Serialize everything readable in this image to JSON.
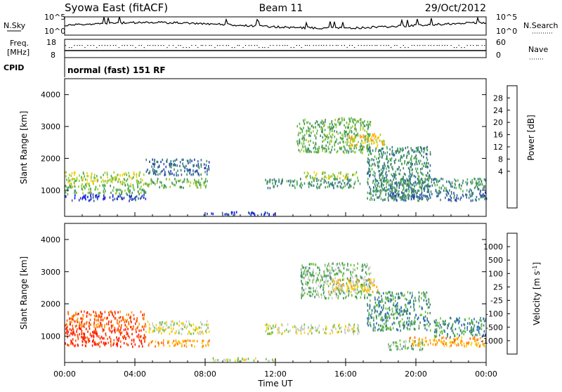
{
  "header": {
    "station": "Syowa East (fitACF)",
    "beam": "Beam 11",
    "date": "29/Oct/2012"
  },
  "noise_panel": {
    "left_label": "N.Sky",
    "right_label": "N.Search",
    "left_ticks": [
      "10^5",
      "10^0"
    ],
    "right_ticks": [
      "10^5",
      "10^0"
    ]
  },
  "freq_panel": {
    "left_label_1": "Freq.",
    "left_label_2": "[MHz]",
    "right_label": "Nave",
    "left_ticks": [
      "18",
      "8"
    ],
    "right_ticks": [
      "60",
      "0"
    ]
  },
  "cpid": {
    "label": "CPID",
    "value": "normal (fast) 151 RF"
  },
  "power_colorbar": {
    "title": "Power [dB]",
    "ticks": [
      "28",
      "24",
      "20",
      "16",
      "12",
      "8",
      "4"
    ],
    "colors": [
      "#ff1a00",
      "#ff5a00",
      "#ff9a00",
      "#ffcc00",
      "#99cc33",
      "#55b04a",
      "#3f8a6a",
      "#2e6a96",
      "#2a3cb4",
      "#1010ff"
    ]
  },
  "velocity_colorbar": {
    "title": "Velocity [m s^-1]",
    "ticks": [
      "1000",
      "500",
      "100",
      "25",
      "-25",
      "-100",
      "-500",
      "-1000"
    ],
    "colors": [
      "#1a33cc",
      "#2d6ab8",
      "#3f8a6a",
      "#66c040",
      "#c8c8c8",
      "#ffcc00",
      "#ff9a00",
      "#ff5a00",
      "#ff1a00"
    ]
  },
  "chart_data": {
    "type": "heatmap",
    "xlabel": "Time UT",
    "ylabel": "Slant Range [km]",
    "x_ticks": [
      "00:00",
      "04:00",
      "08:00",
      "12:00",
      "16:00",
      "20:00",
      "00:00"
    ],
    "xlim_hours": [
      0,
      24
    ],
    "ylim_km": [
      180,
      4500
    ],
    "y_ticks": [
      1000,
      2000,
      3000,
      4000
    ],
    "power_bands": [
      {
        "t0": 0.0,
        "t1": 4.6,
        "r0": 700,
        "r1": 900,
        "level": 8
      },
      {
        "t0": 0.0,
        "t1": 4.6,
        "r0": 900,
        "r1": 1200,
        "level": 5
      },
      {
        "t0": 0.0,
        "t1": 4.6,
        "r0": 1200,
        "r1": 1600,
        "level": 4
      },
      {
        "t0": 4.6,
        "t1": 8.2,
        "r0": 1100,
        "r1": 1400,
        "level": 5
      },
      {
        "t0": 4.6,
        "t1": 8.2,
        "r0": 1500,
        "r1": 2000,
        "level": 7
      },
      {
        "t0": 11.4,
        "t1": 16.8,
        "r0": 1100,
        "r1": 1400,
        "level": 6
      },
      {
        "t0": 13.6,
        "t1": 16.8,
        "r0": 1400,
        "r1": 1600,
        "level": 4
      },
      {
        "t0": 13.2,
        "t1": 17.4,
        "r0": 2200,
        "r1": 3300,
        "level": 5
      },
      {
        "t0": 16.0,
        "t1": 18.2,
        "r0": 2400,
        "r1": 2800,
        "level": 3
      },
      {
        "t0": 17.2,
        "t1": 20.8,
        "r0": 700,
        "r1": 2400,
        "level": 6
      },
      {
        "t0": 18.4,
        "t1": 24.0,
        "r0": 700,
        "r1": 1000,
        "level": 7
      },
      {
        "t0": 17.6,
        "t1": 24.0,
        "r0": 1000,
        "r1": 1400,
        "level": 6
      },
      {
        "t0": 7.8,
        "t1": 12.0,
        "r0": 250,
        "r1": 350,
        "level": 8
      }
    ],
    "velocity_bands": [
      {
        "t0": 0.0,
        "t1": 4.6,
        "r0": 700,
        "r1": 1300,
        "level": 8
      },
      {
        "t0": 0.0,
        "t1": 4.6,
        "r0": 1300,
        "r1": 1800,
        "level": 7
      },
      {
        "t0": 4.6,
        "t1": 8.2,
        "r0": 1100,
        "r1": 1500,
        "level": 4
      },
      {
        "t0": 4.6,
        "t1": 8.2,
        "r0": 700,
        "r1": 900,
        "level": 6
      },
      {
        "t0": 11.4,
        "t1": 16.8,
        "r0": 1100,
        "r1": 1400,
        "level": 4
      },
      {
        "t0": 13.4,
        "t1": 17.4,
        "r0": 2200,
        "r1": 3300,
        "level": 3
      },
      {
        "t0": 15.0,
        "t1": 17.8,
        "r0": 2400,
        "r1": 2800,
        "level": 5
      },
      {
        "t0": 17.2,
        "t1": 20.8,
        "r0": 1200,
        "r1": 2400,
        "level": 2
      },
      {
        "t0": 18.4,
        "t1": 20.4,
        "r0": 600,
        "r1": 900,
        "level": 3
      },
      {
        "t0": 19.6,
        "t1": 24.0,
        "r0": 700,
        "r1": 1000,
        "level": 6
      },
      {
        "t0": 21.0,
        "t1": 24.0,
        "r0": 1000,
        "r1": 1600,
        "level": 2
      },
      {
        "t0": 7.8,
        "t1": 12.0,
        "r0": 250,
        "r1": 350,
        "level": 4
      }
    ]
  }
}
